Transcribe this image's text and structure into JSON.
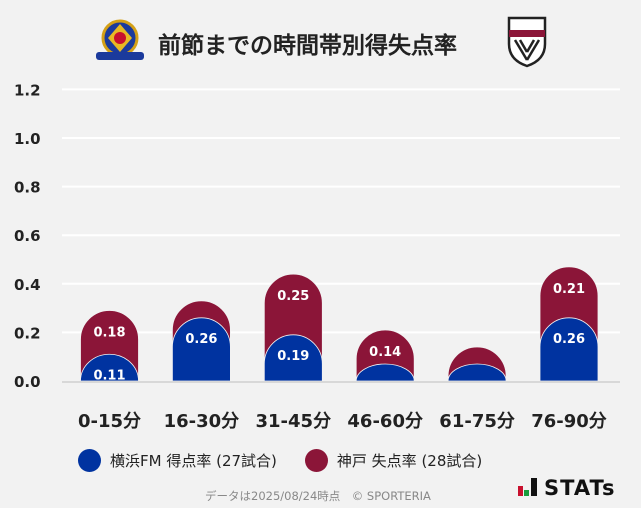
{
  "header": {
    "title": "前節までの時間帯別得失点率",
    "left_logo_text": "Yokohama F·Marinos",
    "right_logo_text": "VISSEL"
  },
  "chart_data": {
    "type": "bar",
    "stacked": true,
    "categories": [
      "0-15分",
      "16-30分",
      "31-45分",
      "46-60分",
      "61-75分",
      "76-90分"
    ],
    "series": [
      {
        "name": "横浜FM 得点率 (27試合)",
        "color": "#0033a0",
        "values": [
          0.11,
          0.26,
          0.19,
          0.07,
          0.07,
          0.26
        ],
        "labels": [
          "0.11",
          "0.26",
          "0.19",
          "",
          "",
          "0.26"
        ]
      },
      {
        "name": "神戸 失点率 (28試合)",
        "color": "#8b1538",
        "values": [
          0.18,
          0.07,
          0.25,
          0.14,
          0.07,
          0.21
        ],
        "labels": [
          "0.18",
          "",
          "0.25",
          "0.14",
          "",
          "0.21"
        ]
      }
    ],
    "ylim": [
      0,
      1.2
    ],
    "yticks": [
      "0.0",
      "0.2",
      "0.4",
      "0.6",
      "0.8",
      "1.0",
      "1.2"
    ],
    "grid": true,
    "legend": "bottom"
  },
  "legend": {
    "items": [
      {
        "label": "横浜FM 得点率 (27試合)",
        "color": "#0033a0"
      },
      {
        "label": "神戸 失点率 (28試合)",
        "color": "#8b1538"
      }
    ]
  },
  "footer": {
    "text": "データは2025/08/24時点　© SPORTERIA",
    "brand": "STATs"
  }
}
